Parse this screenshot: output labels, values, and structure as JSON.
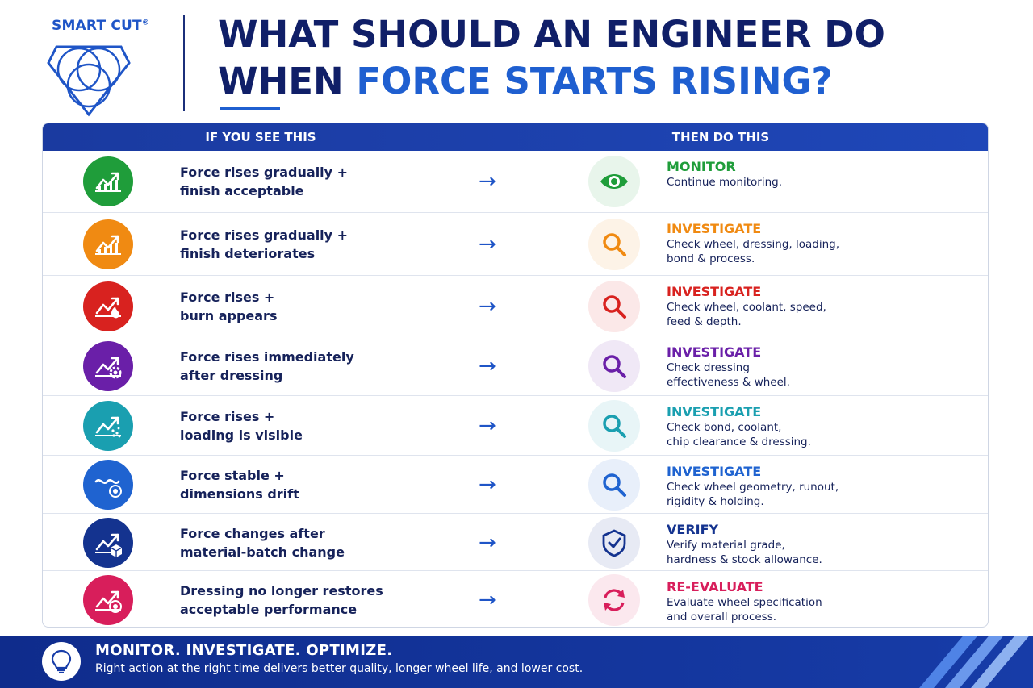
{
  "brand": {
    "name": "SMART CUT",
    "mark": "®"
  },
  "title": {
    "line1": "WHAT SHOULD AN ENGINEER DO",
    "line2_plain": "WHEN ",
    "line2_accent": "FORCE STARTS RISING?"
  },
  "table": {
    "header_left": "IF YOU SEE THIS",
    "header_right": "THEN DO THIS",
    "arrow": "→",
    "rows": [
      {
        "condition": "Force rises gradually +\nfinish acceptable",
        "icon": "trend-up-chart-icon",
        "color": "#1f9d3a",
        "action_icon": "eye-icon",
        "action": "MONITOR",
        "desc": "Continue monitoring."
      },
      {
        "condition": "Force rises gradually +\nfinish deteriorates",
        "icon": "trend-up-chart-icon",
        "color": "#f08a12",
        "action_icon": "magnifier-icon",
        "action": "INVESTIGATE",
        "desc": "Check wheel, dressing, loading,\nbond & process."
      },
      {
        "condition": "Force rises +\nburn appears",
        "icon": "trend-flame-icon",
        "color": "#d8221f",
        "action_icon": "magnifier-icon",
        "action": "INVESTIGATE",
        "desc": "Check wheel, coolant, speed,\nfeed & depth."
      },
      {
        "condition": "Force rises immediately\nafter dressing",
        "icon": "trend-gear-icon",
        "color": "#6a1fa8",
        "action_icon": "magnifier-icon",
        "action": "INVESTIGATE",
        "desc": "Check dressing\neffectiveness & wheel."
      },
      {
        "condition": "Force rises +\nloading is visible",
        "icon": "trend-particles-icon",
        "color": "#1a9fb0",
        "action_icon": "magnifier-icon",
        "action": "INVESTIGATE",
        "desc": "Check bond, coolant,\nchip clearance & dressing."
      },
      {
        "condition": "Force stable +\ndimensions drift",
        "icon": "wave-target-icon",
        "color": "#1f63d0",
        "action_icon": "magnifier-icon",
        "action": "INVESTIGATE",
        "desc": "Check wheel geometry, runout,\nrigidity & holding."
      },
      {
        "condition": "Force changes after\nmaterial-batch change",
        "icon": "trend-box-icon",
        "color": "#14338f",
        "action_icon": "shield-check-icon",
        "action": "VERIFY",
        "desc": "Verify material grade,\nhardness & stock allowance."
      },
      {
        "condition": "Dressing no longer restores\nacceptable performance",
        "icon": "trend-target-icon",
        "color": "#d81e5b",
        "action_icon": "refresh-icon",
        "action": "RE-EVALUATE",
        "desc": "Evaluate wheel specification\nand overall process."
      }
    ]
  },
  "footer": {
    "title": "MONITOR. INVESTIGATE. OPTIMIZE.",
    "text": "Right action at the right time delivers better quality, longer wheel life, and lower cost.",
    "icon": "lightbulb-icon"
  },
  "colors": {
    "navy": "#101f68",
    "accent": "#1f5fd0",
    "header_bar": "#1a3aa0"
  }
}
